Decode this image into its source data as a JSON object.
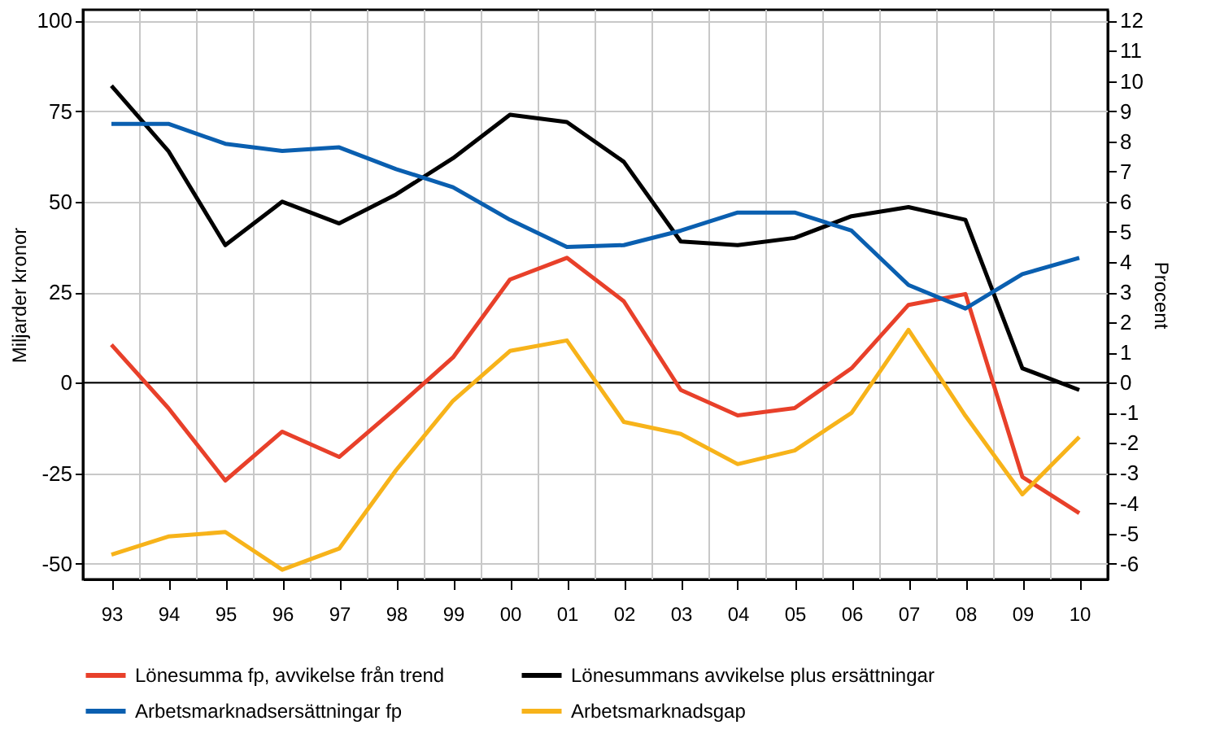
{
  "chart_data": {
    "type": "line",
    "categories": [
      "93",
      "94",
      "95",
      "96",
      "97",
      "98",
      "99",
      "00",
      "01",
      "02",
      "03",
      "04",
      "05",
      "06",
      "07",
      "08",
      "09",
      "10"
    ],
    "series": [
      {
        "name": "Lönesumma fp, avvikelse från trend",
        "color": "#e8402a",
        "values": [
          10.5,
          -7,
          -27,
          -13.5,
          -20.5,
          -7,
          7,
          28.5,
          34.5,
          22.5,
          -2,
          -9,
          -7,
          4,
          21.5,
          24.5,
          -26,
          -36
        ]
      },
      {
        "name": "Lönesummans avvikelse plus ersättningar",
        "color": "#000000",
        "values": [
          82,
          64,
          38,
          50,
          44,
          52,
          62,
          74,
          72,
          61,
          39,
          38,
          40,
          46,
          48.5,
          45,
          4,
          -2
        ]
      },
      {
        "name": "Arbetsmarknadsersättningar fp",
        "color": "#0a5fb0",
        "values": [
          71.5,
          71.5,
          66,
          64,
          65,
          59,
          54,
          45,
          37.5,
          38,
          42,
          47,
          47,
          42,
          27,
          20.5,
          30,
          34.5
        ]
      },
      {
        "name": "Arbetsmarknadsgap",
        "color": "#f7b31a",
        "axis": "y2",
        "values": [
          -5.7,
          -5.1,
          -4.95,
          -6.2,
          -5.5,
          -2.9,
          -0.6,
          1.05,
          1.4,
          -1.3,
          -1.7,
          -2.7,
          -2.25,
          -1.0,
          1.75,
          -1.1,
          -3.7,
          -1.8
        ]
      }
    ],
    "ylabel": "Miljarder kronor",
    "y2label": "Procent",
    "ylim": [
      -54.3,
      103
    ],
    "yticks": [
      -50,
      -25,
      0,
      25,
      50,
      75,
      100
    ],
    "y2lim": [
      -6.52,
      12.36
    ],
    "y2ticks": [
      -6,
      -5,
      -4,
      -3,
      -2,
      -1,
      0,
      1,
      2,
      3,
      4,
      5,
      6,
      7,
      8,
      9,
      10,
      11,
      12
    ],
    "ref_lines": [
      {
        "axis": "y",
        "value": 0,
        "color": "#000000"
      }
    ],
    "grid": true,
    "legend": "bottom",
    "marker": "none",
    "line_style": "solid"
  }
}
